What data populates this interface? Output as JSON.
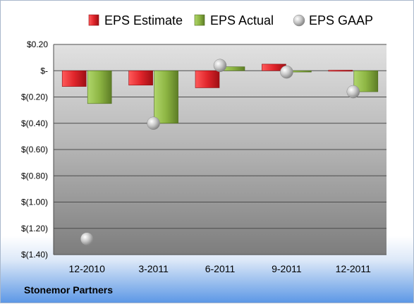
{
  "footer": {
    "company": "Stonemor Partners"
  },
  "colors": {
    "estimate": "#e0252b",
    "actual": "#8db543",
    "gaap": "#b8b8b8"
  },
  "chart_data": {
    "type": "bar",
    "categories": [
      "12-2010",
      "3-2011",
      "6-2011",
      "9-2011",
      "12-2011"
    ],
    "series": [
      {
        "name": "EPS Estimate",
        "kind": "bar",
        "values": [
          -0.12,
          -0.11,
          -0.13,
          0.05,
          0.0
        ]
      },
      {
        "name": "EPS Actual",
        "kind": "bar",
        "values": [
          -0.25,
          -0.4,
          0.03,
          -0.01,
          -0.16
        ]
      },
      {
        "name": "EPS GAAP",
        "kind": "marker",
        "values": [
          -1.28,
          -0.4,
          0.04,
          -0.01,
          -0.16
        ]
      }
    ],
    "ylim": [
      -1.4,
      0.2
    ],
    "yticks": [
      0.2,
      0,
      -0.2,
      -0.4,
      -0.6,
      -0.8,
      -1.0,
      -1.2,
      -1.4
    ],
    "ytick_labels": [
      "$0.20",
      "$-",
      "$(0.20)",
      "$(0.40)",
      "$(0.60)",
      "$(0.80)",
      "$(1.00)",
      "$(1.20)",
      "$(1.40)"
    ],
    "legend_position": "top",
    "grid": true,
    "title": "",
    "xlabel": "",
    "ylabel": ""
  }
}
